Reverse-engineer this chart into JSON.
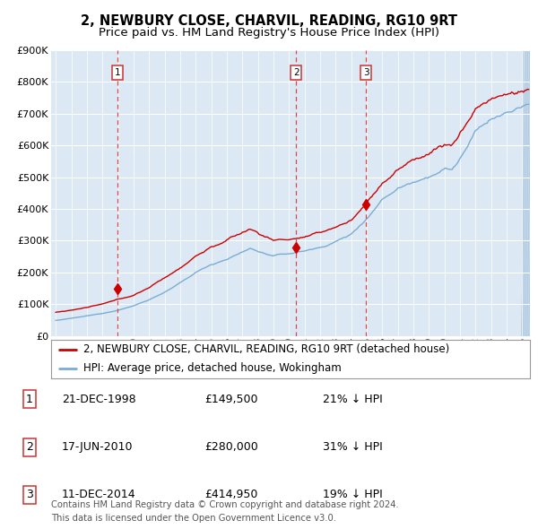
{
  "title": "2, NEWBURY CLOSE, CHARVIL, READING, RG10 9RT",
  "subtitle": "Price paid vs. HM Land Registry's House Price Index (HPI)",
  "bg_color": "#dce9f5",
  "outer_bg": "#ffffff",
  "grid_color": "#ffffff",
  "ylim": [
    0,
    900000
  ],
  "yticks": [
    0,
    100000,
    200000,
    300000,
    400000,
    500000,
    600000,
    700000,
    800000,
    900000
  ],
  "ytick_labels": [
    "£0",
    "£100K",
    "£200K",
    "£300K",
    "£400K",
    "£500K",
    "£600K",
    "£700K",
    "£800K",
    "£900K"
  ],
  "xlim_start": 1994.7,
  "xlim_end": 2025.5,
  "sale_dates": [
    1998.97,
    2010.46,
    2014.95
  ],
  "sale_prices": [
    149500,
    280000,
    414950
  ],
  "sale_labels": [
    "1",
    "2",
    "3"
  ],
  "red_line_color": "#cc0000",
  "blue_line_color": "#7aadd4",
  "marker_color": "#cc0000",
  "dashed_line_color": "#cc3333",
  "legend_label_red": "2, NEWBURY CLOSE, CHARVIL, READING, RG10 9RT (detached house)",
  "legend_label_blue": "HPI: Average price, detached house, Wokingham",
  "table_rows": [
    {
      "num": "1",
      "date": "21-DEC-1998",
      "price": "£149,500",
      "hpi": "21% ↓ HPI"
    },
    {
      "num": "2",
      "date": "17-JUN-2010",
      "price": "£280,000",
      "hpi": "31% ↓ HPI"
    },
    {
      "num": "3",
      "date": "11-DEC-2014",
      "price": "£414,950",
      "hpi": "19% ↓ HPI"
    }
  ],
  "footer": "Contains HM Land Registry data © Crown copyright and database right 2024.\nThis data is licensed under the Open Government Licence v3.0.",
  "title_fontsize": 10.5,
  "subtitle_fontsize": 9.5,
  "tick_fontsize": 8,
  "legend_fontsize": 8.5,
  "table_fontsize": 9
}
